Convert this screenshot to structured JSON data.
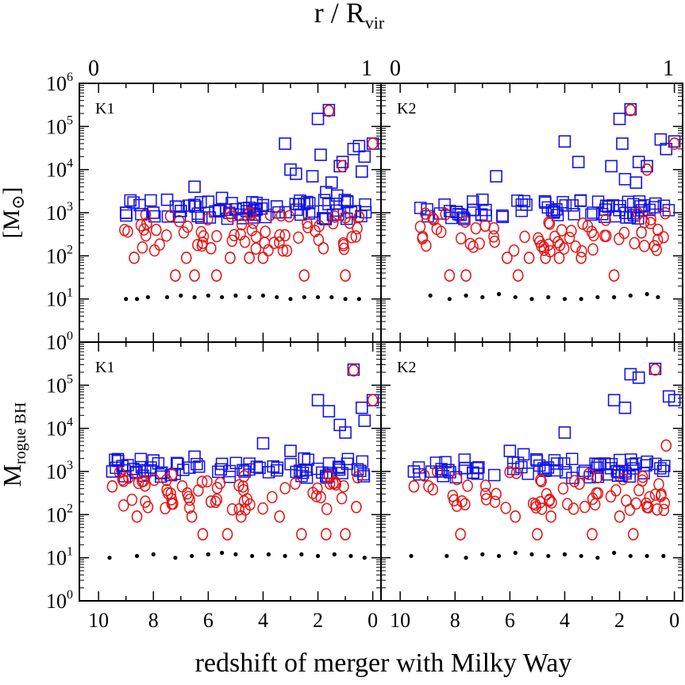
{
  "figure": {
    "top_axis_label": "r  /  R",
    "top_axis_label_sub": "vir",
    "x_label": "redshift of merger with Milky Way",
    "y_label_upper": "[M",
    "y_label_upper_symbol": "⊙",
    "y_label_upper_close": "]",
    "y_label_lower": "M",
    "y_label_lower_sub": "rogue BH"
  },
  "chart_data": [
    {
      "type": "scatter",
      "panel": "K1",
      "position": "top-left",
      "title": "K1",
      "x_top_ticks": [
        "0",
        "1"
      ],
      "x_ticks": [],
      "xlim": [
        10.7,
        -0.3
      ],
      "ylim_log10": [
        0,
        6
      ],
      "y_ticks_exp": [
        0,
        1,
        2,
        3,
        4,
        5,
        6
      ],
      "yscale": "log",
      "series": [
        {
          "marker": "square",
          "color": "#1414e6",
          "x": [
            1.6,
            0.7,
            0.0,
            1.2,
            0.5,
            0.3,
            2.0,
            1.9,
            1.1,
            3.2,
            3.0,
            2.8,
            2.2,
            0.4,
            1.5,
            4.0,
            5.0,
            6.0,
            7.0,
            8.0,
            9.0,
            1.7,
            2.5,
            6.5,
            7.5,
            8.5,
            5.5,
            4.5,
            3.5,
            1.3
          ],
          "y": [
            240000,
            30000,
            40000,
            12000,
            35000,
            20000,
            150000,
            22000,
            15000,
            40000,
            10000,
            8000,
            7000,
            9000,
            5000,
            1500,
            1200,
            1800,
            1100,
            1000,
            1000,
            3000,
            1600,
            4000,
            2000,
            1500,
            2200,
            1300,
            1400,
            2500
          ]
        },
        {
          "marker": "circle",
          "color": "#e61414",
          "x": [
            1.6,
            0.0,
            1.1,
            8.7,
            7.2,
            6.8,
            6.5,
            5.7,
            5.2,
            4.5,
            4.0,
            3.6,
            2.5,
            1.8,
            1.0,
            0.5,
            3.2,
            6.2,
            5.9,
            7.9
          ],
          "y": [
            230000,
            40000,
            12000,
            90,
            35,
            90,
            35,
            35,
            90,
            90,
            90,
            200,
            35,
            150,
            35,
            800,
            300,
            200,
            150,
            400
          ]
        },
        {
          "marker": "dot",
          "color": "#000000",
          "x": [
            9.0,
            8.6,
            8.2,
            7.5,
            7.0,
            6.5,
            6.0,
            5.5,
            5.0,
            4.5,
            4.0,
            3.5,
            3.0,
            2.5,
            2.0,
            1.5,
            1.0,
            0.5
          ],
          "y": [
            10,
            10,
            11,
            11,
            12,
            11,
            12,
            11,
            12,
            11,
            12,
            11,
            10,
            11,
            11,
            11,
            10,
            10
          ]
        }
      ]
    },
    {
      "type": "scatter",
      "panel": "K2",
      "position": "top-right",
      "title": "K2",
      "x_top_ticks": [
        "0",
        "1"
      ],
      "x_ticks": [],
      "xlim": [
        10.7,
        -0.3
      ],
      "ylim_log10": [
        0,
        6
      ],
      "yscale": "log",
      "series": [
        {
          "marker": "square",
          "color": "#1414e6",
          "x": [
            1.6,
            0.5,
            0.0,
            2.0,
            1.9,
            1.3,
            1.0,
            0.3,
            4.0,
            3.5,
            2.3,
            6.5,
            7.0,
            1.8,
            1.4
          ],
          "y": [
            250000,
            50000,
            45000,
            150000,
            40000,
            15000,
            12000,
            30000,
            45000,
            15000,
            12000,
            7000,
            2000,
            6000,
            5000
          ]
        },
        {
          "marker": "circle",
          "color": "#e61414",
          "x": [
            1.6,
            0.0,
            1.0,
            8.2,
            7.6,
            6.1,
            5.7,
            4.7,
            4.2,
            3.4,
            2.2,
            1.2,
            0.6,
            6.9,
            5.3
          ],
          "y": [
            240000,
            40000,
            10000,
            35,
            35,
            90,
            35,
            90,
            90,
            90,
            35,
            350,
            400,
            500,
            90
          ]
        },
        {
          "marker": "dot",
          "color": "#000000",
          "x": [
            8.9,
            8.2,
            7.6,
            7.0,
            6.4,
            5.8,
            5.2,
            4.6,
            4.0,
            3.4,
            2.8,
            2.2,
            1.6,
            1.0,
            0.6
          ],
          "y": [
            12,
            10,
            12,
            11,
            13,
            11,
            10,
            11,
            10,
            10,
            11,
            11,
            12,
            13,
            11
          ]
        }
      ]
    },
    {
      "type": "scatter",
      "panel": "K1",
      "position": "bottom-left",
      "title": "K1",
      "x_ticks": [
        "10",
        "8",
        "6",
        "4",
        "2",
        "0"
      ],
      "xlim": [
        10.7,
        -0.3
      ],
      "ylim_log10": [
        0,
        6
      ],
      "yscale": "log",
      "series": [
        {
          "marker": "square",
          "color": "#1414e6",
          "x": [
            0.7,
            0.0,
            0.4,
            2.0,
            1.6,
            1.2,
            1.0,
            0.3,
            4.0,
            3.0,
            2.5,
            9.5,
            8.0,
            6.5,
            5.5
          ],
          "y": [
            230000,
            45000,
            30000,
            45000,
            25000,
            12000,
            8000,
            15000,
            4500,
            3000,
            2000,
            1000,
            1800,
            2200,
            1500
          ]
        },
        {
          "marker": "circle",
          "color": "#e61414",
          "x": [
            0.7,
            0.0,
            9.5,
            8.6,
            8.2,
            6.6,
            6.2,
            5.3,
            4.8,
            3.4,
            2.6,
            1.7,
            1.0,
            0.6,
            5.9
          ],
          "y": [
            220000,
            45000,
            450,
            90,
            150,
            90,
            35,
            35,
            90,
            90,
            35,
            35,
            35,
            150,
            200
          ]
        },
        {
          "marker": "dot",
          "color": "#000000",
          "x": [
            9.6,
            8.6,
            8.0,
            7.2,
            6.6,
            6.0,
            5.5,
            5.0,
            4.4,
            3.8,
            3.2,
            2.6,
            2.0,
            1.4,
            0.8,
            0.3
          ],
          "y": [
            10,
            11,
            12,
            10,
            11,
            12,
            13,
            12,
            11,
            12,
            11,
            12,
            11,
            12,
            11,
            10
          ]
        }
      ]
    },
    {
      "type": "scatter",
      "panel": "K2",
      "position": "bottom-right",
      "title": "K2",
      "x_ticks": [
        "10",
        "8",
        "6",
        "4",
        "2",
        "0"
      ],
      "xlim": [
        10.7,
        -0.3
      ],
      "ylim_log10": [
        0,
        6
      ],
      "yscale": "log",
      "series": [
        {
          "marker": "square",
          "color": "#1414e6",
          "x": [
            0.7,
            0.2,
            0.0,
            1.6,
            1.3,
            2.2,
            1.8,
            4.0,
            6.0,
            9.5,
            8.5,
            5.5
          ],
          "y": [
            240000,
            55000,
            45000,
            180000,
            150000,
            45000,
            30000,
            8000,
            3000,
            1000,
            1000,
            2500
          ]
        },
        {
          "marker": "circle",
          "color": "#e61414",
          "x": [
            0.7,
            0.3,
            9.5,
            7.8,
            5.8,
            5.0,
            4.5,
            3.0,
            2.0,
            1.5,
            1.0,
            6.5
          ],
          "y": [
            230000,
            4000,
            450,
            35,
            90,
            35,
            90,
            35,
            90,
            35,
            150,
            300
          ]
        },
        {
          "marker": "dot",
          "color": "#000000",
          "x": [
            9.6,
            8.3,
            7.6,
            7.0,
            6.4,
            5.8,
            5.2,
            4.6,
            4.0,
            3.4,
            2.8,
            2.2,
            1.6,
            1.0,
            0.4
          ],
          "y": [
            11,
            11,
            10,
            12,
            11,
            13,
            12,
            11,
            12,
            11,
            10,
            13,
            11,
            11,
            11
          ]
        }
      ]
    }
  ]
}
